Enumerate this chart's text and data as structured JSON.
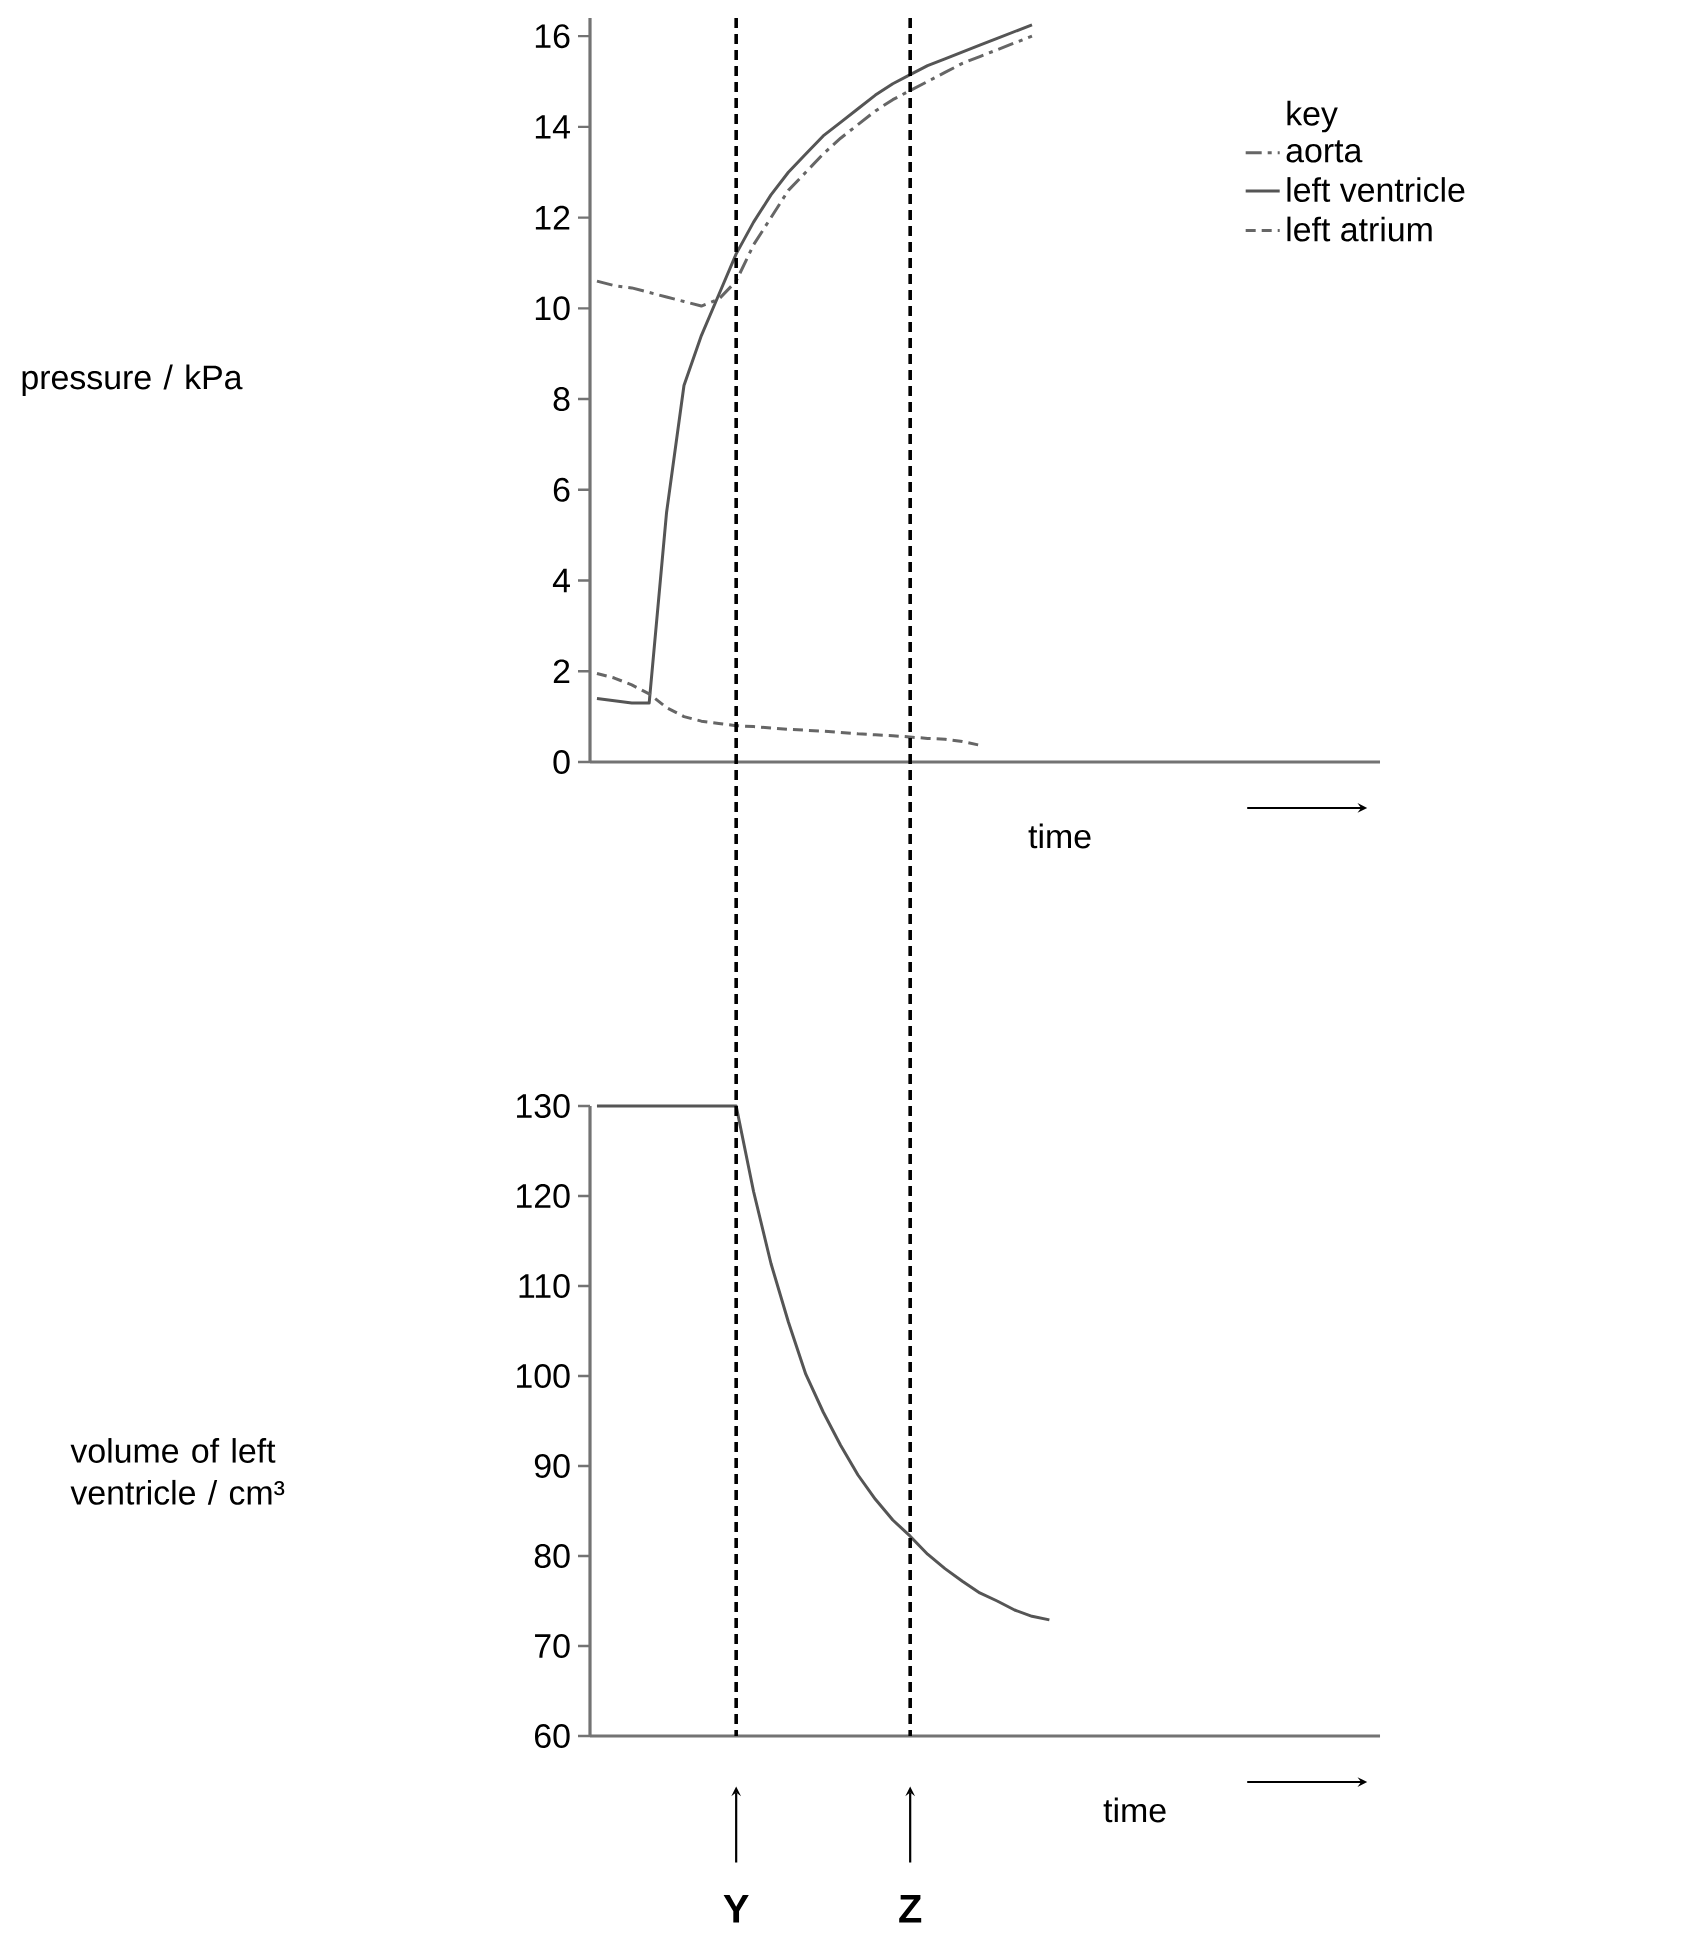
{
  "chart_data": [
    {
      "type": "line",
      "xlabel": "time",
      "ylabel": "pressure / kPa",
      "legend_title": "key",
      "legend": "top right",
      "tick_labels": "y",
      "categories": [
        null,
        null,
        null,
        null,
        null,
        null,
        null,
        null,
        "Y",
        null,
        null,
        null,
        null,
        null,
        null,
        null,
        null,
        null,
        "Z",
        null,
        null,
        null,
        null,
        null,
        null,
        null,
        null,
        null,
        null,
        null,
        null,
        null,
        null,
        null,
        null,
        null,
        null,
        null,
        null,
        null,
        null,
        null,
        null,
        null,
        null,
        null
      ],
      "ylim": [
        0,
        16.4
      ],
      "yticks": [
        0,
        2,
        4,
        6,
        8,
        10,
        12,
        14,
        16
      ],
      "series": [
        {
          "name": "aorta",
          "color": "#666666",
          "line_style": "dashdot",
          "values": [
            10.6,
            10.5,
            10.45,
            10.35,
            10.25,
            10.15,
            10.05,
            10.2,
            10.6,
            11.4,
            12.0,
            12.6,
            13.0,
            13.4,
            13.75,
            14.05,
            14.35,
            14.6,
            14.8,
            15.0,
            15.2,
            15.4,
            15.55,
            15.7,
            15.85,
            16.0,
            null,
            null,
            null,
            null,
            null,
            null,
            null,
            null,
            null,
            null,
            null,
            null,
            null,
            null,
            null,
            null,
            null,
            null,
            null,
            null
          ]
        },
        {
          "name": "left ventricle",
          "color": "#555555",
          "line_style": "solid",
          "values": [
            1.4,
            1.35,
            1.3,
            1.3,
            5.5,
            8.3,
            9.4,
            10.3,
            11.2,
            11.9,
            12.5,
            13.0,
            13.4,
            13.8,
            14.1,
            14.4,
            14.7,
            14.95,
            15.15,
            15.35,
            15.5,
            15.65,
            15.8,
            15.95,
            16.1,
            16.25,
            null,
            null,
            null,
            null,
            null,
            null,
            null,
            null,
            null,
            null,
            null,
            null,
            null,
            null,
            null,
            null,
            null,
            null,
            null,
            null
          ]
        },
        {
          "name": "left atrium",
          "color": "#666666",
          "line_style": "dashed",
          "values": [
            1.95,
            1.85,
            1.7,
            1.5,
            1.2,
            1.0,
            0.9,
            0.85,
            0.8,
            0.78,
            0.75,
            0.72,
            0.7,
            0.68,
            0.65,
            0.62,
            0.6,
            0.58,
            0.55,
            0.52,
            0.5,
            0.45,
            0.37,
            null,
            null,
            null,
            null,
            null,
            null,
            null,
            null,
            null,
            null,
            null,
            null,
            null,
            null,
            null,
            null,
            null,
            null,
            null,
            null,
            null,
            null,
            null
          ]
        }
      ],
      "ref_lines": [
        {
          "axis": "x",
          "value": "Y",
          "color": "#000000",
          "line_style": "dashed"
        },
        {
          "axis": "x",
          "value": "Z",
          "color": "#000000",
          "line_style": "dashed"
        }
      ]
    },
    {
      "type": "line",
      "xlabel": "time",
      "ylabel": "volume of left ventricle / cm³",
      "categories": [
        null,
        null,
        null,
        null,
        null,
        null,
        null,
        null,
        "Y",
        null,
        null,
        null,
        null,
        null,
        null,
        null,
        null,
        null,
        "Z",
        null,
        null,
        null,
        null,
        null,
        null,
        null,
        null,
        null,
        null,
        null,
        null,
        null,
        null,
        null,
        null,
        null,
        null,
        null,
        null,
        null,
        null,
        null,
        null,
        null,
        null,
        null
      ],
      "ylim": [
        60,
        130
      ],
      "yticks": [
        60,
        70,
        80,
        90,
        100,
        110,
        120,
        130
      ],
      "series": [
        {
          "color": "#555555",
          "line_style": "solid",
          "values": [
            130,
            130,
            130,
            130,
            130,
            130,
            130,
            130,
            130,
            120.5,
            112.5,
            106,
            100.2,
            96,
            92.3,
            89,
            86.3,
            84,
            82.2,
            80.2,
            78.6,
            77.2,
            75.9,
            75,
            74,
            73.3,
            72.9,
            null,
            null,
            null,
            null,
            null,
            null,
            null,
            null,
            null,
            null,
            null,
            null,
            null,
            null,
            null,
            null,
            null,
            null,
            null
          ]
        }
      ],
      "ref_lines": [
        {
          "axis": "x",
          "value": "Y",
          "color": "#000000",
          "line_style": "dashed"
        },
        {
          "axis": "x",
          "value": "Z",
          "color": "#000000",
          "line_style": "dashed"
        }
      ]
    }
  ]
}
